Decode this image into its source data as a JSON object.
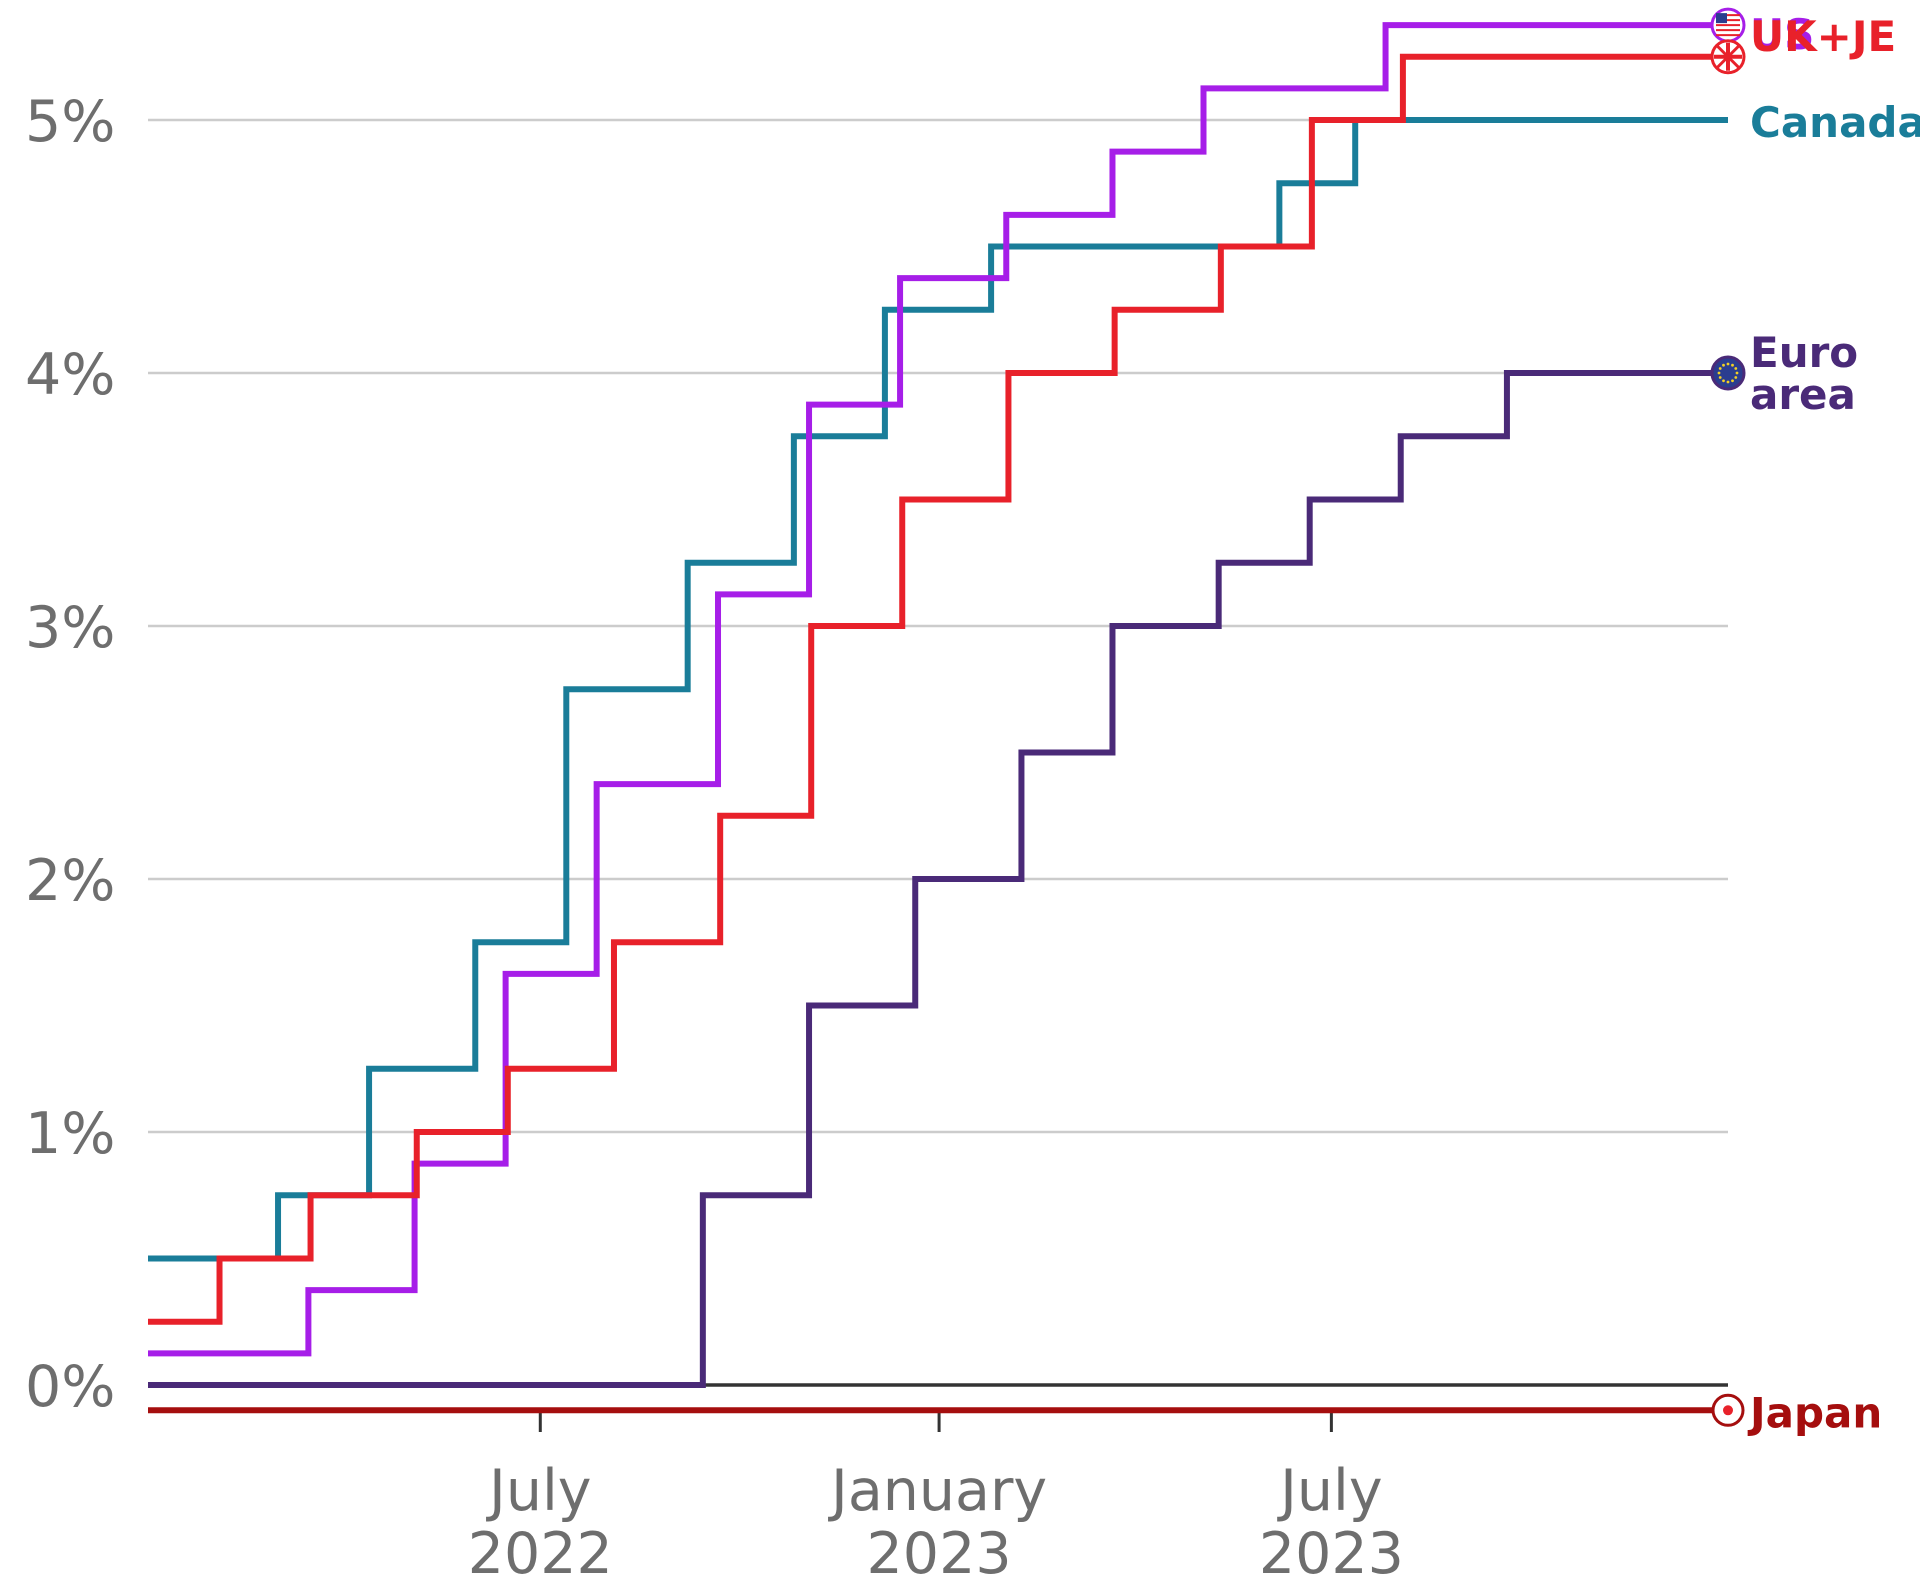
{
  "chart_data": {
    "type": "line",
    "step": true,
    "x_range": [
      "2022-01-01",
      "2023-12-31"
    ],
    "ylim": [
      -0.1,
      5.25
    ],
    "y_ticks": [
      {
        "value": 0,
        "label": "0%"
      },
      {
        "value": 1,
        "label": "1%"
      },
      {
        "value": 2,
        "label": "2%"
      },
      {
        "value": 3,
        "label": "3%"
      },
      {
        "value": 4,
        "label": "4%"
      },
      {
        "value": 5,
        "label": "5%"
      }
    ],
    "x_ticks": [
      {
        "date": "2022-07-01",
        "line1": "July",
        "line2": "2022"
      },
      {
        "date": "2023-01-01",
        "line1": "January",
        "line2": "2023"
      },
      {
        "date": "2023-07-01",
        "line1": "July",
        "line2": "2023"
      }
    ],
    "grid": true,
    "legend": "direct labels at line ends (right)",
    "series": [
      {
        "name": "Canada",
        "label_lines": [
          "Canada"
        ],
        "color": "#1a7d99",
        "icon": "canada-flag-icon",
        "points": [
          [
            "2022-01-01",
            0.5
          ],
          [
            "2022-03-02",
            0.75
          ],
          [
            "2022-04-13",
            1.25
          ],
          [
            "2022-06-01",
            1.75
          ],
          [
            "2022-07-13",
            2.75
          ],
          [
            "2022-09-07",
            3.25
          ],
          [
            "2022-10-26",
            3.75
          ],
          [
            "2022-12-07",
            4.25
          ],
          [
            "2023-01-25",
            4.5
          ],
          [
            "2023-06-07",
            4.75
          ],
          [
            "2023-07-12",
            5.0
          ],
          [
            "2023-12-31",
            5.0
          ]
        ]
      },
      {
        "name": "US",
        "label_lines": [
          "US"
        ],
        "color": "#a61ee8",
        "icon": "us-flag-icon",
        "points": [
          [
            "2022-01-01",
            0.125
          ],
          [
            "2022-03-16",
            0.375
          ],
          [
            "2022-05-04",
            0.875
          ],
          [
            "2022-06-15",
            1.625
          ],
          [
            "2022-07-27",
            2.375
          ],
          [
            "2022-09-21",
            3.125
          ],
          [
            "2022-11-02",
            3.875
          ],
          [
            "2022-12-14",
            4.375
          ],
          [
            "2023-02-01",
            4.625
          ],
          [
            "2023-03-22",
            4.875
          ],
          [
            "2023-05-03",
            5.125
          ],
          [
            "2023-07-26",
            5.375
          ],
          [
            "2023-12-31",
            5.375
          ]
        ]
      },
      {
        "name": "UK+JE",
        "label_lines": [
          "UK+JE"
        ],
        "color": "#e8212a",
        "icon": "uk-flag-icon",
        "points": [
          [
            "2022-01-01",
            0.25
          ],
          [
            "2022-02-03",
            0.5
          ],
          [
            "2022-03-17",
            0.75
          ],
          [
            "2022-05-05",
            1.0
          ],
          [
            "2022-06-16",
            1.25
          ],
          [
            "2022-08-04",
            1.75
          ],
          [
            "2022-09-22",
            2.25
          ],
          [
            "2022-11-03",
            3.0
          ],
          [
            "2022-12-15",
            3.5
          ],
          [
            "2023-02-02",
            4.0
          ],
          [
            "2023-03-23",
            4.25
          ],
          [
            "2023-05-11",
            4.5
          ],
          [
            "2023-06-22",
            5.0
          ],
          [
            "2023-08-03",
            5.25
          ],
          [
            "2023-12-31",
            5.25
          ]
        ]
      },
      {
        "name": "Euro area",
        "label_lines": [
          "Euro",
          "area"
        ],
        "color": "#4a2a78",
        "icon": "eu-flag-icon",
        "points": [
          [
            "2022-01-01",
            0.0
          ],
          [
            "2022-09-14",
            0.75
          ],
          [
            "2022-11-02",
            1.5
          ],
          [
            "2022-12-21",
            2.0
          ],
          [
            "2023-02-08",
            2.5
          ],
          [
            "2023-03-22",
            3.0
          ],
          [
            "2023-05-10",
            3.25
          ],
          [
            "2023-06-21",
            3.5
          ],
          [
            "2023-08-02",
            3.75
          ],
          [
            "2023-09-20",
            4.0
          ],
          [
            "2023-12-31",
            4.0
          ]
        ]
      },
      {
        "name": "Japan",
        "label_lines": [
          "Japan"
        ],
        "color": "#a50e0e",
        "icon": "japan-flag-icon",
        "points": [
          [
            "2022-01-01",
            -0.1
          ],
          [
            "2023-12-31",
            -0.1
          ]
        ]
      }
    ]
  }
}
